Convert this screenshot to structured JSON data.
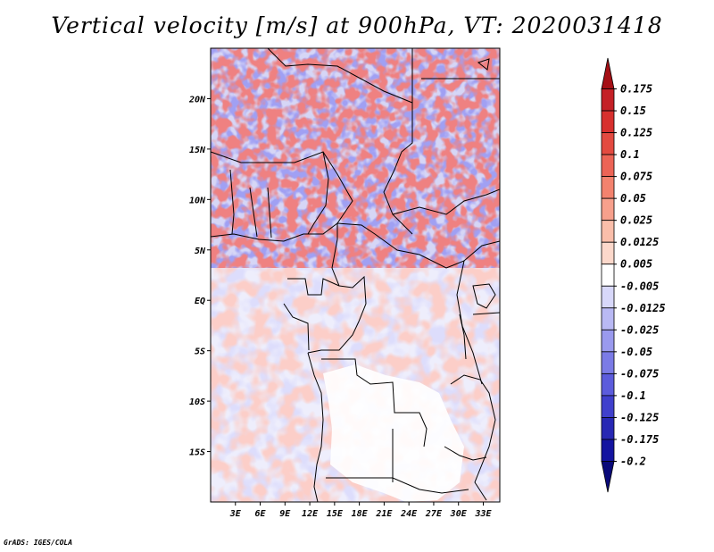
{
  "title": "Vertical velocity [m/s] at 900hPa, VT: 2020031418",
  "credit": "GrADS: IGES/COLA",
  "chart_data": {
    "type": "heatmap",
    "title": "Vertical velocity [m/s] at 900hPa, VT: 2020031418",
    "variable": "Vertical velocity",
    "units": "m/s",
    "level": "900hPa",
    "valid_time": "2020031418",
    "xlim": [
      0,
      35
    ],
    "ylim": [
      -20,
      25
    ],
    "x_ticks": [
      {
        "value": 3,
        "label": "3E"
      },
      {
        "value": 6,
        "label": "6E"
      },
      {
        "value": 9,
        "label": "9E"
      },
      {
        "value": 12,
        "label": "12E"
      },
      {
        "value": 15,
        "label": "15E"
      },
      {
        "value": 18,
        "label": "18E"
      },
      {
        "value": 21,
        "label": "21E"
      },
      {
        "value": 24,
        "label": "24E"
      },
      {
        "value": 27,
        "label": "27E"
      },
      {
        "value": 30,
        "label": "30E"
      },
      {
        "value": 33,
        "label": "33E"
      }
    ],
    "y_ticks": [
      {
        "value": 20,
        "label": "20N"
      },
      {
        "value": 15,
        "label": "15N"
      },
      {
        "value": 10,
        "label": "10N"
      },
      {
        "value": 5,
        "label": "5N"
      },
      {
        "value": 0,
        "label": "EQ"
      },
      {
        "value": -5,
        "label": "5S"
      },
      {
        "value": -10,
        "label": "10S"
      },
      {
        "value": -15,
        "label": "15S"
      }
    ],
    "colorbar": {
      "labels": [
        "0.175",
        "0.15",
        "0.125",
        "0.1",
        "0.075",
        "0.05",
        "0.025",
        "0.0125",
        "0.005",
        "-0.005",
        "-0.0125",
        "-0.025",
        "-0.05",
        "-0.075",
        "-0.1",
        "-0.125",
        "-0.175",
        "-0.2"
      ],
      "colors": [
        "#a50f15",
        "#c42026",
        "#d7302e",
        "#e34a40",
        "#ec6456",
        "#f3826e",
        "#f7a08c",
        "#fabeaa",
        "#fcd8cb",
        "#ffffff",
        "#d8d8fa",
        "#b9b9f4",
        "#9a9aee",
        "#7b7be6",
        "#5c5cdc",
        "#4040cc",
        "#2828b4",
        "#1414a0",
        "#0a0a7a"
      ]
    }
  }
}
